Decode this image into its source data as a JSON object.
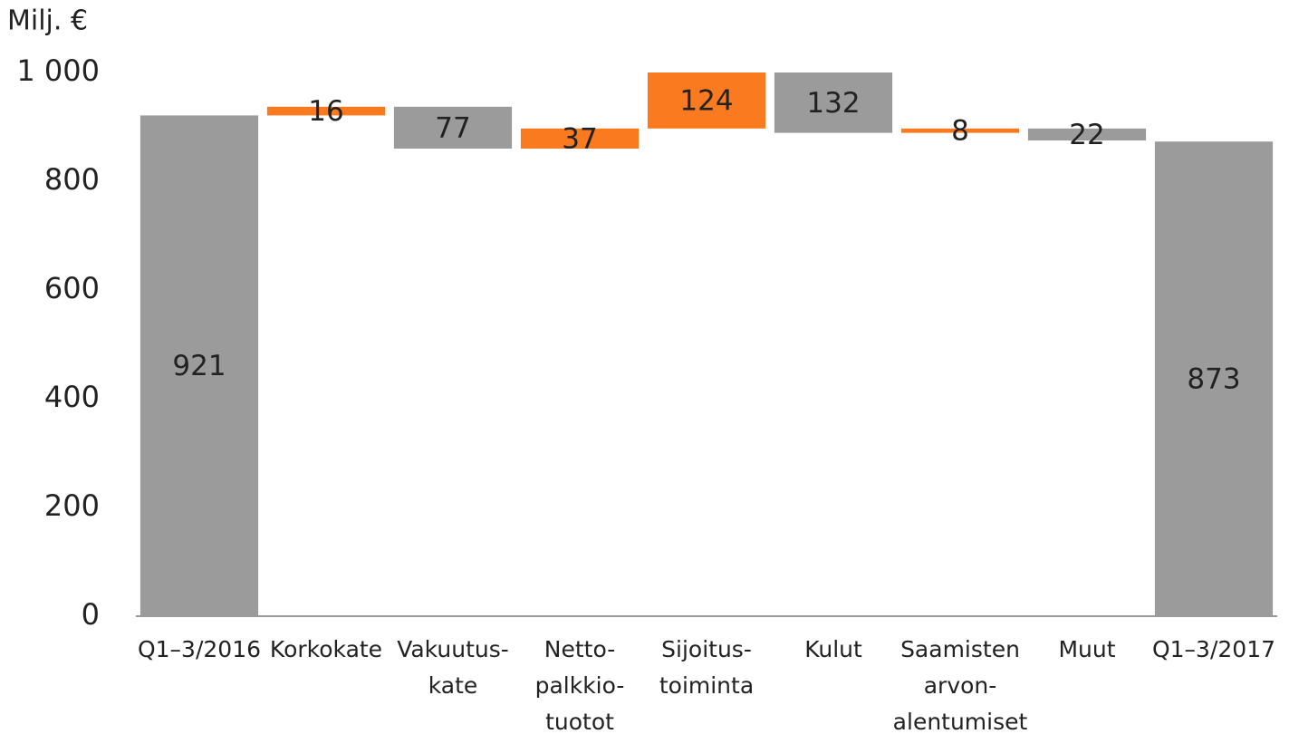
{
  "chart_data": {
    "type": "waterfall",
    "y_label": "Milj. €",
    "categories": [
      [
        "Q1–3/2016"
      ],
      [
        "Korkokate"
      ],
      [
        "Vakuutus-",
        "kate"
      ],
      [
        "Netto-",
        "palkkio-",
        "tuotot"
      ],
      [
        "Sijoitus-",
        "toiminta"
      ],
      [
        "Kulut"
      ],
      [
        "Saamisten",
        "arvon-",
        "alentumiset"
      ],
      [
        "Muut"
      ],
      [
        "Q1–3/2017"
      ]
    ],
    "values": [
      921,
      16,
      -77,
      37,
      124,
      -132,
      8,
      -22,
      873
    ],
    "value_labels": [
      "921",
      "16",
      "77",
      "37",
      "124",
      "132",
      "8",
      "22",
      "873"
    ],
    "increase_color": "#f97a1f",
    "decrease_color": "#9b9b9b",
    "total_color": "#9b9b9b",
    "ylim": [
      0,
      1000
    ],
    "yticks": [
      0,
      200,
      400,
      600,
      800,
      {
        "value": 1000,
        "label": "1 000"
      }
    ]
  }
}
